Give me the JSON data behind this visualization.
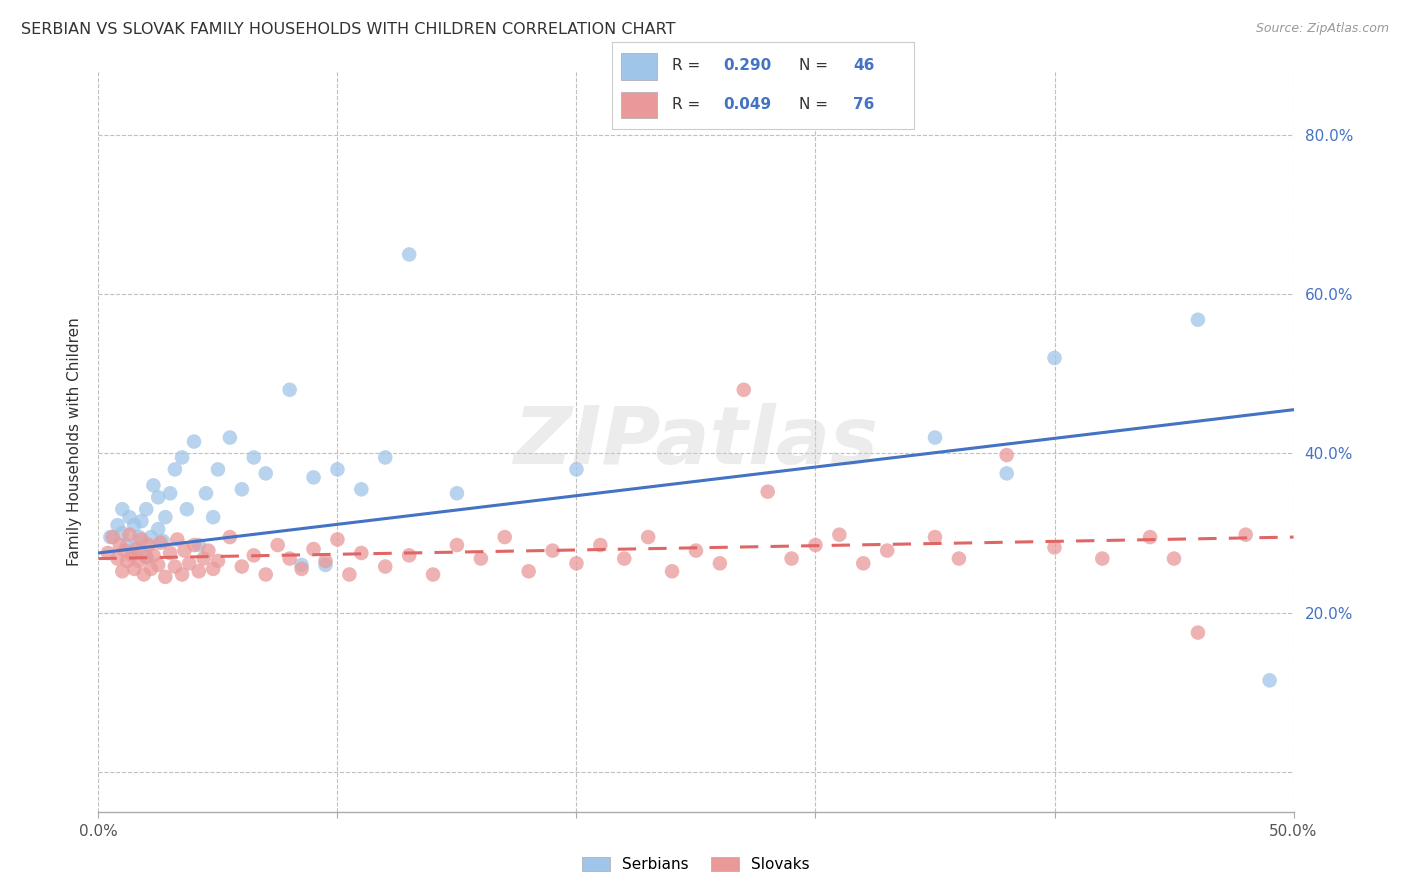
{
  "title": "SERBIAN VS SLOVAK FAMILY HOUSEHOLDS WITH CHILDREN CORRELATION CHART",
  "source": "Source: ZipAtlas.com",
  "ylabel": "Family Households with Children",
  "watermark": "ZIPatlas",
  "xlim": [
    0.0,
    0.5
  ],
  "ylim": [
    -0.05,
    0.88
  ],
  "serbian_color": "#9fc5e8",
  "slovak_color": "#ea9999",
  "serbian_line_color": "#4472c4",
  "slovak_line_color": "#e06666",
  "background_color": "#ffffff",
  "grid_color": "#c0c0c0",
  "title_fontsize": 11.5,
  "axis_label_fontsize": 11,
  "tick_fontsize": 11,
  "legend_text_color": "#4472c4",
  "legend_label_color": "#333333",
  "ytick_vals": [
    0.0,
    0.2,
    0.4,
    0.6,
    0.8
  ],
  "xtick_vals": [
    0.0,
    0.1,
    0.2,
    0.3,
    0.4,
    0.5
  ],
  "srb_line_start_y": 0.275,
  "srb_line_end_y": 0.455,
  "slk_line_start_y": 0.268,
  "slk_line_end_y": 0.295
}
